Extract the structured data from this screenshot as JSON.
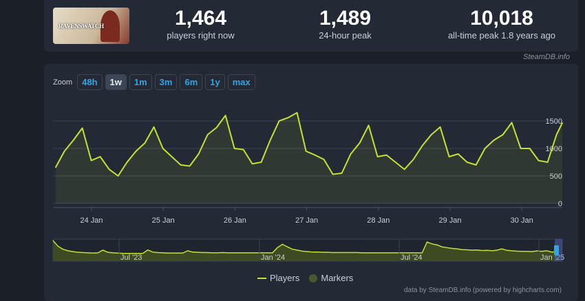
{
  "game": {
    "logo_text": "RAVENSWATCH"
  },
  "stats": [
    {
      "value": "1,464",
      "label": "players right now"
    },
    {
      "value": "1,489",
      "label": "24-hour peak"
    },
    {
      "value": "10,018",
      "label": "all-time peak 1.8 years ago"
    }
  ],
  "credit": "SteamDB.info",
  "zoom": {
    "label": "Zoom",
    "buttons": [
      "48h",
      "1w",
      "1m",
      "3m",
      "6m",
      "1y",
      "max"
    ],
    "active": "1w"
  },
  "legend": {
    "players": "Players",
    "markers": "Markers"
  },
  "footer": "data by SteamDB.info (powered by highcharts.com)",
  "colors": {
    "line": "#c6e230",
    "markers": "#4b5a2e",
    "background": "#232a35"
  },
  "chart_data": {
    "type": "line",
    "x_ticks": [
      "24 Jan",
      "25 Jan",
      "26 Jan",
      "27 Jan",
      "28 Jan",
      "29 Jan",
      "30 Jan"
    ],
    "y_ticks": [
      "0",
      "500",
      "1000",
      "1500"
    ],
    "ylim": [
      0,
      1800
    ],
    "grid": true,
    "legend_placement": "bottom",
    "series": [
      {
        "name": "Players",
        "x": [
          "2025-01-23 12:00",
          "2025-01-23 15:00",
          "2025-01-23 18:00",
          "2025-01-23 21:00",
          "2025-01-24 00:00",
          "2025-01-24 03:00",
          "2025-01-24 06:00",
          "2025-01-24 09:00",
          "2025-01-24 12:00",
          "2025-01-24 15:00",
          "2025-01-24 18:00",
          "2025-01-24 21:00",
          "2025-01-25 00:00",
          "2025-01-25 03:00",
          "2025-01-25 06:00",
          "2025-01-25 09:00",
          "2025-01-25 12:00",
          "2025-01-25 15:00",
          "2025-01-25 18:00",
          "2025-01-25 21:00",
          "2025-01-26 00:00",
          "2025-01-26 03:00",
          "2025-01-26 06:00",
          "2025-01-26 09:00",
          "2025-01-26 12:00",
          "2025-01-26 15:00",
          "2025-01-26 18:00",
          "2025-01-26 21:00",
          "2025-01-27 00:00",
          "2025-01-27 03:00",
          "2025-01-27 06:00",
          "2025-01-27 09:00",
          "2025-01-27 12:00",
          "2025-01-27 15:00",
          "2025-01-27 18:00",
          "2025-01-27 21:00",
          "2025-01-28 00:00",
          "2025-01-28 03:00",
          "2025-01-28 06:00",
          "2025-01-28 09:00",
          "2025-01-28 12:00",
          "2025-01-28 15:00",
          "2025-01-28 18:00",
          "2025-01-28 21:00",
          "2025-01-29 00:00",
          "2025-01-29 03:00",
          "2025-01-29 06:00",
          "2025-01-29 09:00",
          "2025-01-29 12:00",
          "2025-01-29 15:00",
          "2025-01-29 18:00",
          "2025-01-29 21:00",
          "2025-01-30 00:00",
          "2025-01-30 03:00",
          "2025-01-30 06:00",
          "2025-01-30 09:00",
          "2025-01-30 12:00",
          "2025-01-30 14:00"
        ],
        "values": [
          650,
          950,
          1150,
          1370,
          780,
          850,
          620,
          500,
          750,
          950,
          1100,
          1390,
          1000,
          850,
          700,
          680,
          900,
          1250,
          1380,
          1600,
          1000,
          980,
          720,
          750,
          1150,
          1500,
          1560,
          1650,
          950,
          880,
          800,
          530,
          550,
          900,
          1100,
          1420,
          850,
          880,
          750,
          620,
          800,
          1050,
          1250,
          1390,
          850,
          900,
          750,
          700,
          1000,
          1150,
          1250,
          1470,
          1000,
          1000,
          780,
          750,
          1250,
          1470
        ]
      }
    ],
    "navigator": {
      "x_ticks": [
        "Jul '23",
        "Jan '24",
        "Jul '24",
        "Jan '25"
      ],
      "values": [
        10018,
        5000,
        3000,
        2200,
        1800,
        1500,
        1400,
        1300,
        1200,
        1300,
        2500,
        1500,
        1300,
        1200,
        1100,
        1100,
        1100,
        1100,
        1100,
        2600,
        1600,
        1400,
        1300,
        1200,
        1200,
        1200,
        1200,
        2200,
        1600,
        1500,
        1400,
        1400,
        1300,
        1300,
        1400,
        1300,
        1300,
        1300,
        1300,
        1300,
        1300,
        1300,
        1300,
        1300,
        1300,
        4000,
        6500,
        4500,
        3000,
        2500,
        2000,
        1800,
        1600,
        1600,
        1500,
        1500,
        1400,
        1400,
        1400,
        1400,
        1400,
        1400,
        1300,
        1300,
        1300,
        1300,
        1300,
        1300,
        1300,
        1300,
        1300,
        1300,
        1300,
        1300,
        1300,
        8500,
        6800,
        6000,
        4500,
        4000,
        3500,
        3200,
        2800,
        2700,
        2500,
        2600,
        2300,
        2400,
        2200,
        2500,
        3200,
        2400,
        2200,
        2000,
        1900,
        1900,
        1800,
        2100,
        1900,
        2200,
        1600,
        1900
      ]
    }
  }
}
